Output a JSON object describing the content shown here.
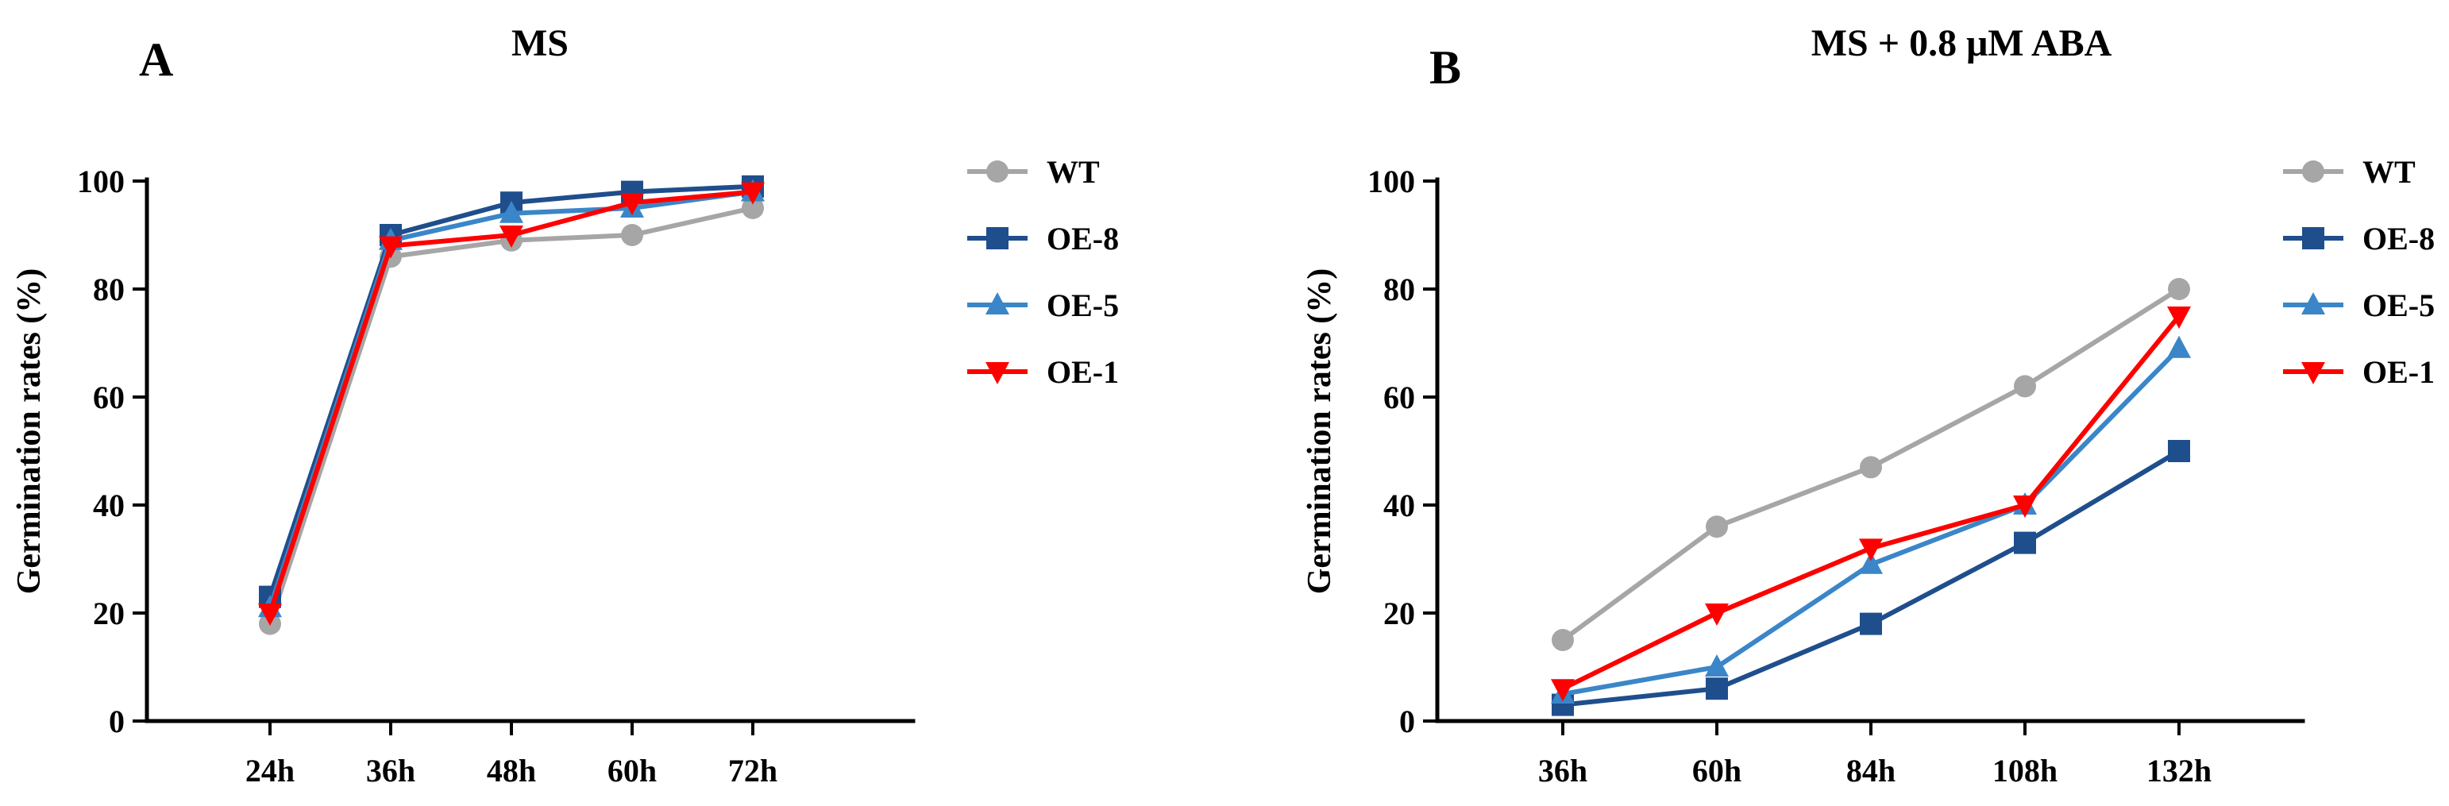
{
  "panels": [
    {
      "letter": "A",
      "chart_ref": 0
    },
    {
      "letter": "B",
      "chart_ref": 1
    }
  ],
  "colors": {
    "WT": "#a6a6a6",
    "OE-8": "#1f4e8c",
    "OE-5": "#3a86c8",
    "OE-1": "#ff0000"
  },
  "markers": {
    "WT": "circle",
    "OE-8": "square",
    "OE-5": "triangle-up",
    "OE-1": "triangle-down"
  },
  "chart_data": [
    {
      "type": "line",
      "title": "MS",
      "xlabel": "",
      "ylabel": "Germination rates (%)",
      "ylim": [
        0,
        100
      ],
      "yticks": [
        0,
        20,
        40,
        60,
        80,
        100
      ],
      "categories": [
        "24h",
        "36h",
        "48h",
        "60h",
        "72h"
      ],
      "legend_position": "right",
      "series": [
        {
          "name": "WT",
          "values": [
            18,
            86,
            89,
            90,
            95
          ]
        },
        {
          "name": "OE-8",
          "values": [
            23,
            90,
            96,
            98,
            99
          ]
        },
        {
          "name": "OE-5",
          "values": [
            21,
            89,
            94,
            95,
            98
          ]
        },
        {
          "name": "OE-1",
          "values": [
            20,
            88,
            90,
            96,
            98
          ]
        }
      ]
    },
    {
      "type": "line",
      "title": "MS + 0.8 μM ABA",
      "xlabel": "",
      "ylabel": "Germination rates (%)",
      "ylim": [
        0,
        100
      ],
      "yticks": [
        0,
        20,
        40,
        60,
        80,
        100
      ],
      "categories": [
        "36h",
        "60h",
        "84h",
        "108h",
        "132h"
      ],
      "legend_position": "right",
      "series": [
        {
          "name": "WT",
          "values": [
            15,
            36,
            47,
            62,
            80
          ]
        },
        {
          "name": "OE-8",
          "values": [
            3,
            6,
            18,
            33,
            50
          ]
        },
        {
          "name": "OE-5",
          "values": [
            5,
            10,
            29,
            40,
            69
          ]
        },
        {
          "name": "OE-1",
          "values": [
            6,
            20,
            32,
            40,
            75
          ]
        }
      ]
    }
  ]
}
